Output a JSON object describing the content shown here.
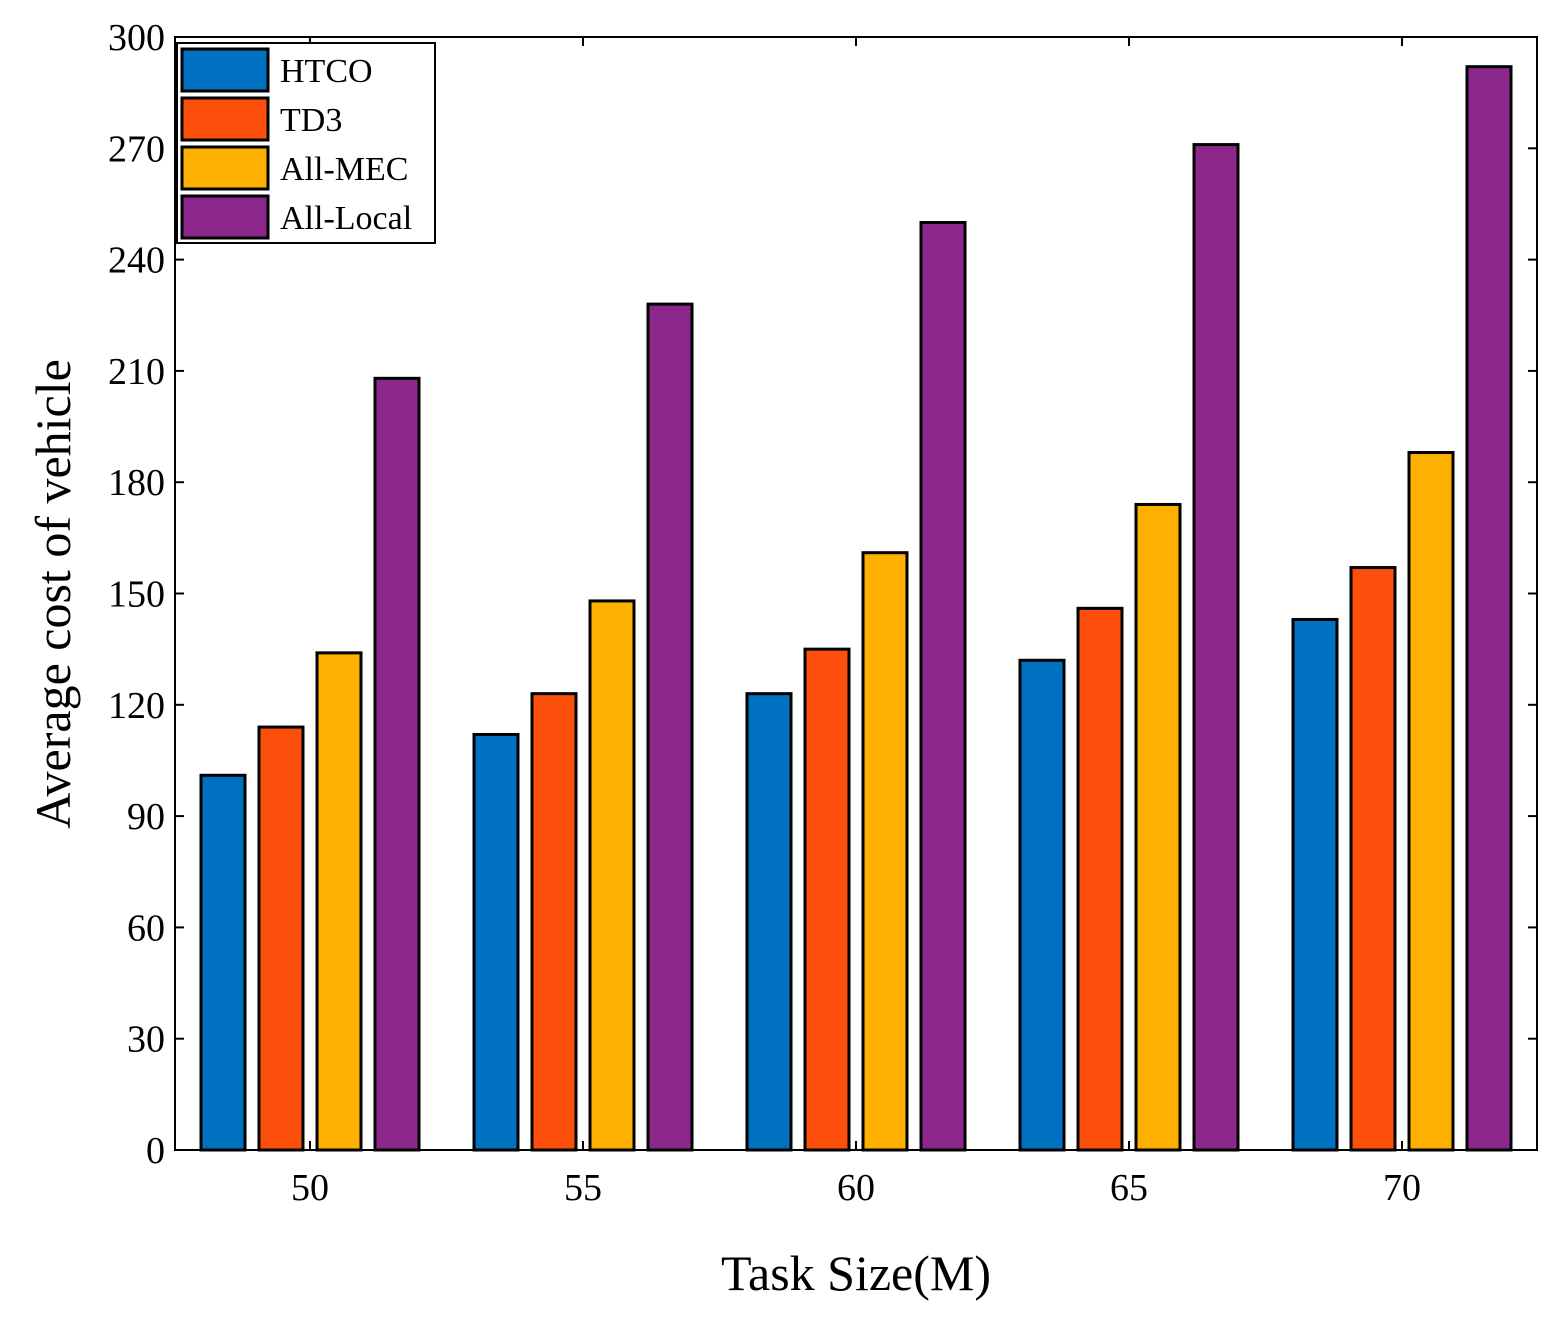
{
  "chart_data": {
    "type": "bar",
    "title": "",
    "xlabel": "Task Size(M)",
    "ylabel": "Average cost of vehicle",
    "categories": [
      "50",
      "55",
      "60",
      "65",
      "70"
    ],
    "series": [
      {
        "name": "HTCO",
        "color": "#0070C0",
        "values": [
          101,
          112,
          123,
          132,
          143
        ]
      },
      {
        "name": "TD3",
        "color": "#FB4F0B",
        "values": [
          114,
          123,
          135,
          146,
          157
        ]
      },
      {
        "name": "All-MEC",
        "color": "#FEB000",
        "values": [
          134,
          148,
          161,
          174,
          188
        ]
      },
      {
        "name": "All-Local",
        "color": "#8C288C",
        "values": [
          208,
          228,
          250,
          271,
          292
        ]
      }
    ],
    "ylim": [
      0,
      300
    ],
    "yticks": [
      0,
      30,
      60,
      90,
      120,
      150,
      180,
      210,
      240,
      270,
      300
    ],
    "grid": false,
    "legend_position": "top-left"
  }
}
